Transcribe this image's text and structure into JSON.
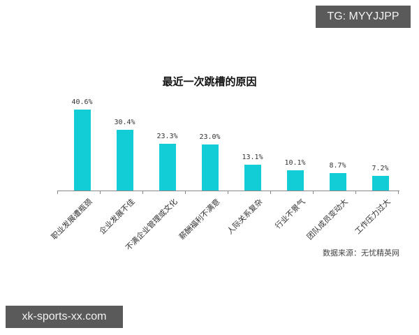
{
  "watermarks": {
    "top_right": "TG: MYYJJPP",
    "bottom_left": "xk-sports-xx.com"
  },
  "chart_data": {
    "type": "bar",
    "title": "最近一次跳槽的原因",
    "categories": [
      "职业发展遭瓶颈",
      "企业发展不佳",
      "不满企业管理或文化",
      "薪酬福利不满意",
      "人际关系复杂",
      "行业不景气",
      "团队成员变动大",
      "工作压力过大"
    ],
    "values": [
      40.6,
      30.4,
      23.3,
      23.0,
      13.1,
      10.1,
      8.7,
      7.2
    ],
    "value_labels": [
      "40.6%",
      "30.4%",
      "23.3%",
      "23.0%",
      "13.1%",
      "10.1%",
      "8.7%",
      "7.2%"
    ],
    "xlabel": "",
    "ylabel": "",
    "ylim": [
      0,
      45
    ],
    "grid": false,
    "legend": null,
    "bar_color": "#12cdd6",
    "source": "数据来源：无忧精英网"
  }
}
